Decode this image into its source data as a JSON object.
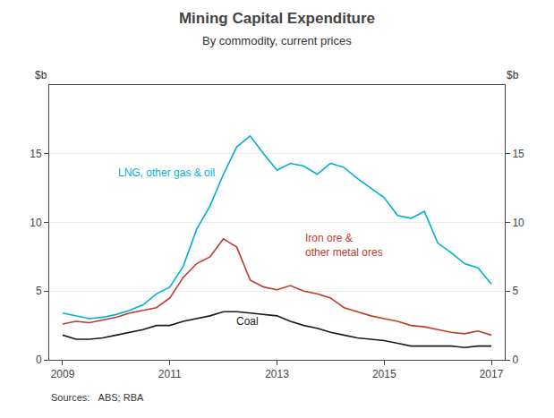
{
  "chart_data": {
    "type": "line",
    "title": "Mining Capital Expenditure",
    "subtitle": "By commodity, current prices",
    "ylabel": "$b",
    "y2label": "$b",
    "source": "Sources:   ABS; RBA",
    "x": [
      2009.0,
      2009.25,
      2009.5,
      2009.75,
      2010.0,
      2010.25,
      2010.5,
      2010.75,
      2011.0,
      2011.25,
      2011.5,
      2011.75,
      2012.0,
      2012.25,
      2012.5,
      2012.75,
      2013.0,
      2013.25,
      2013.5,
      2013.75,
      2014.0,
      2014.25,
      2014.5,
      2014.75,
      2015.0,
      2015.25,
      2015.5,
      2015.75,
      2016.0,
      2016.25,
      2016.5,
      2016.75,
      2017.0
    ],
    "series": [
      {
        "color": "#00b0d0",
        "values": [
          3.4,
          3.2,
          3.0,
          3.1,
          3.3,
          3.6,
          4.0,
          4.8,
          5.3,
          6.8,
          9.5,
          11.2,
          13.5,
          15.5,
          16.3,
          15.0,
          13.8,
          14.3,
          14.1,
          13.5,
          14.3,
          14.0,
          13.2,
          12.5,
          11.8,
          10.5,
          10.3,
          10.8,
          8.5,
          7.8,
          7.0,
          6.7,
          5.5
        ]
      },
      {
        "color": "#c0392b",
        "values": [
          2.6,
          2.8,
          2.7,
          2.9,
          3.1,
          3.4,
          3.6,
          3.8,
          4.5,
          6.0,
          7.0,
          7.5,
          8.8,
          8.2,
          5.8,
          5.3,
          5.1,
          5.4,
          5.0,
          4.8,
          4.5,
          3.8,
          3.5,
          3.2,
          3.0,
          2.8,
          2.5,
          2.4,
          2.2,
          2.0,
          1.9,
          2.1,
          1.8
        ]
      },
      {
        "color": "#1a1a1a",
        "values": [
          1.8,
          1.5,
          1.5,
          1.6,
          1.8,
          2.0,
          2.2,
          2.5,
          2.5,
          2.8,
          3.0,
          3.2,
          3.5,
          3.5,
          3.4,
          3.3,
          3.2,
          2.8,
          2.5,
          2.3,
          2.0,
          1.8,
          1.6,
          1.5,
          1.4,
          1.2,
          1.0,
          1.0,
          1.0,
          1.0,
          0.9,
          1.0,
          1.0
        ]
      }
    ],
    "annotations": [
      {
        "text": "LNG, other gas & oil",
        "x": 2010.0,
        "y": 13.0,
        "color": "#00b0d0"
      },
      {
        "text": "Iron ore &\nother metal ores",
        "x": 2013.5,
        "y": 7.2,
        "color": "#c0392b"
      },
      {
        "text": "Coal",
        "x": 2012.2,
        "y": 2.2,
        "color": "#1a1a1a"
      }
    ],
    "xlim": [
      2008.75,
      2017.25
    ],
    "xticks": [
      2009,
      2011,
      2013,
      2015,
      2017
    ],
    "ylim": [
      0,
      20
    ],
    "yticks": [
      0,
      5,
      10,
      15
    ],
    "y2lim": [
      0,
      20
    ],
    "y2ticks": [
      0,
      5,
      10,
      15
    ],
    "grid": true
  }
}
